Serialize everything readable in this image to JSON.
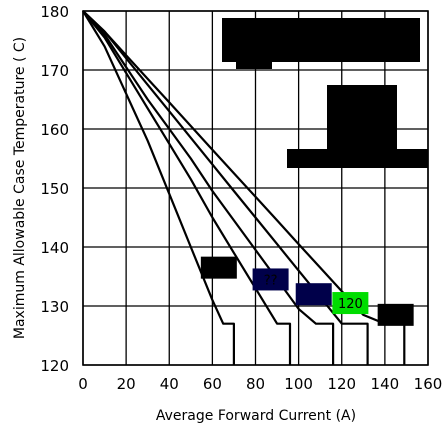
{
  "chart_data": {
    "type": "line",
    "xlabel": "Average Forward Current (A)",
    "ylabel": "Maximum Allowable Case Temperature ( C)",
    "xlim": [
      0,
      160
    ],
    "ylim": [
      120,
      180
    ],
    "xticks": [
      0,
      20,
      40,
      60,
      80,
      100,
      120,
      140,
      160
    ],
    "yticks": [
      120,
      130,
      140,
      150,
      160,
      170,
      180
    ],
    "grid": true,
    "series": [
      {
        "points": [
          [
            0,
            180
          ],
          [
            10,
            174
          ],
          [
            20,
            166
          ],
          [
            30,
            158
          ],
          [
            40,
            149
          ],
          [
            50,
            140
          ],
          [
            60,
            131
          ],
          [
            65,
            127
          ],
          [
            70,
            127
          ],
          [
            70,
            120
          ]
        ],
        "marker": {
          "x": 63,
          "y": 136.5,
          "fill": "#000000",
          "label": ""
        }
      },
      {
        "points": [
          [
            0,
            180
          ],
          [
            10,
            175.5
          ],
          [
            20,
            169.5
          ],
          [
            30,
            163.5
          ],
          [
            40,
            157.5
          ],
          [
            50,
            151.5
          ],
          [
            60,
            145
          ],
          [
            70,
            139
          ],
          [
            80,
            133
          ],
          [
            90,
            127
          ],
          [
            96,
            127
          ],
          [
            96,
            120
          ]
        ],
        "marker": {
          "x": 87,
          "y": 134.5,
          "fill": "#00004a",
          "label": "??"
        }
      },
      {
        "points": [
          [
            0,
            180
          ],
          [
            10,
            176
          ],
          [
            20,
            170.5
          ],
          [
            30,
            165
          ],
          [
            40,
            160
          ],
          [
            50,
            155
          ],
          [
            60,
            149.5
          ],
          [
            70,
            144.5
          ],
          [
            80,
            139.5
          ],
          [
            90,
            134.5
          ],
          [
            100,
            129.5
          ],
          [
            108,
            127
          ],
          [
            116,
            127
          ],
          [
            116,
            120
          ]
        ],
        "marker": {
          "x": 107,
          "y": 132,
          "fill": "#00004a",
          "label": ""
        }
      },
      {
        "points": [
          [
            0,
            180
          ],
          [
            10,
            176.5
          ],
          [
            20,
            172
          ],
          [
            30,
            167.5
          ],
          [
            40,
            163
          ],
          [
            50,
            158.5
          ],
          [
            60,
            154
          ],
          [
            70,
            149.5
          ],
          [
            80,
            145
          ],
          [
            90,
            140.5
          ],
          [
            100,
            136
          ],
          [
            110,
            131.5
          ],
          [
            120,
            127
          ],
          [
            132,
            127
          ],
          [
            132,
            120
          ]
        ],
        "marker": {
          "x": 124,
          "y": 130.5,
          "fill": "#00dd00",
          "label": "120"
        }
      },
      {
        "points": [
          [
            0,
            180
          ],
          [
            10,
            176.5
          ],
          [
            20,
            172.5
          ],
          [
            30,
            168.5
          ],
          [
            40,
            164.5
          ],
          [
            50,
            160.5
          ],
          [
            60,
            156.5
          ],
          [
            70,
            152.5
          ],
          [
            80,
            148.5
          ],
          [
            90,
            144.5
          ],
          [
            100,
            140.5
          ],
          [
            110,
            136.5
          ],
          [
            120,
            132.5
          ],
          [
            130,
            128.5
          ],
          [
            140,
            127
          ],
          [
            149,
            127
          ],
          [
            149,
            120
          ]
        ],
        "marker": {
          "x": 145,
          "y": 128.5,
          "fill": "#000000",
          "label": ""
        }
      }
    ]
  },
  "colors": {
    "line": "#000000",
    "background": "#ffffff",
    "redaction": "#000000"
  }
}
